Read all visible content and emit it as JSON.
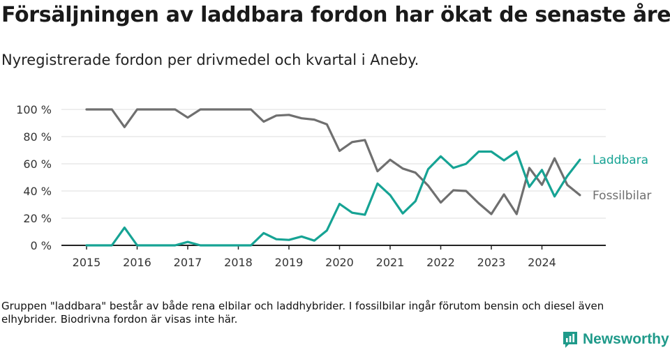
{
  "title": "Försäljningen av laddbara fordon har ökat de senaste åren",
  "subtitle": "Nyregistrerade fordon per drivmedel och kvartal i Aneby.",
  "footnote": "Gruppen \"laddbara\" består av både rena elbilar och laddhybrider. I fossilbilar ingår förutom bensin och diesel även elhybrider. Biodrivna fordon är visas inte här.",
  "brand": {
    "name": "Newsworthy",
    "icon": "bar-chart-logo-icon",
    "color": "#1f9a8a"
  },
  "chart_data": {
    "type": "line",
    "title": "Försäljningen av laddbara fordon har ökat de senaste åren",
    "xlabel": "",
    "ylabel": "",
    "ylim": [
      0,
      100
    ],
    "y_ticks": [
      0,
      20,
      40,
      60,
      80,
      100
    ],
    "y_tick_labels": [
      "0 %",
      "20 %",
      "40 %",
      "60 %",
      "80 %",
      "100 %"
    ],
    "x_ticks": [
      2015,
      2016,
      2017,
      2018,
      2019,
      2020,
      2021,
      2022,
      2023,
      2024
    ],
    "xlim": [
      2014.7,
      2025.1
    ],
    "grid": true,
    "x": [
      2015.0,
      2015.25,
      2015.5,
      2015.75,
      2016.0,
      2016.25,
      2016.5,
      2016.75,
      2017.0,
      2017.25,
      2017.5,
      2017.75,
      2018.0,
      2018.25,
      2018.5,
      2018.75,
      2019.0,
      2019.25,
      2019.5,
      2019.75,
      2020.0,
      2020.25,
      2020.5,
      2020.75,
      2021.0,
      2021.25,
      2021.5,
      2021.75,
      2022.0,
      2022.25,
      2022.5,
      2022.75,
      2023.0,
      2023.25,
      2023.5,
      2023.75,
      2024.0,
      2024.25,
      2024.5,
      2024.75
    ],
    "series": [
      {
        "name": "Laddbara",
        "color": "#16a394",
        "values": [
          0,
          0,
          0,
          13,
          0,
          0,
          0,
          0,
          2.5,
          0,
          0,
          0,
          0,
          0,
          9,
          4.5,
          4,
          6.5,
          3.5,
          11,
          30.5,
          24,
          22.5,
          45.5,
          37,
          23.5,
          32.5,
          56,
          65.5,
          57,
          60,
          69,
          69,
          62.5,
          69,
          43,
          55.5,
          36,
          51,
          63
        ]
      },
      {
        "name": "Fossilbilar",
        "color": "#6f6f6f",
        "values": [
          100,
          100,
          100,
          87,
          100,
          100,
          100,
          100,
          94,
          100,
          100,
          100,
          100,
          100,
          91,
          95.5,
          96,
          93.5,
          92.5,
          89,
          69.5,
          76,
          77.5,
          54.5,
          63,
          56.5,
          53.5,
          44,
          31.5,
          40.5,
          40,
          31,
          23,
          37.5,
          23,
          57,
          44.5,
          64,
          44.5,
          37
        ]
      }
    ]
  }
}
